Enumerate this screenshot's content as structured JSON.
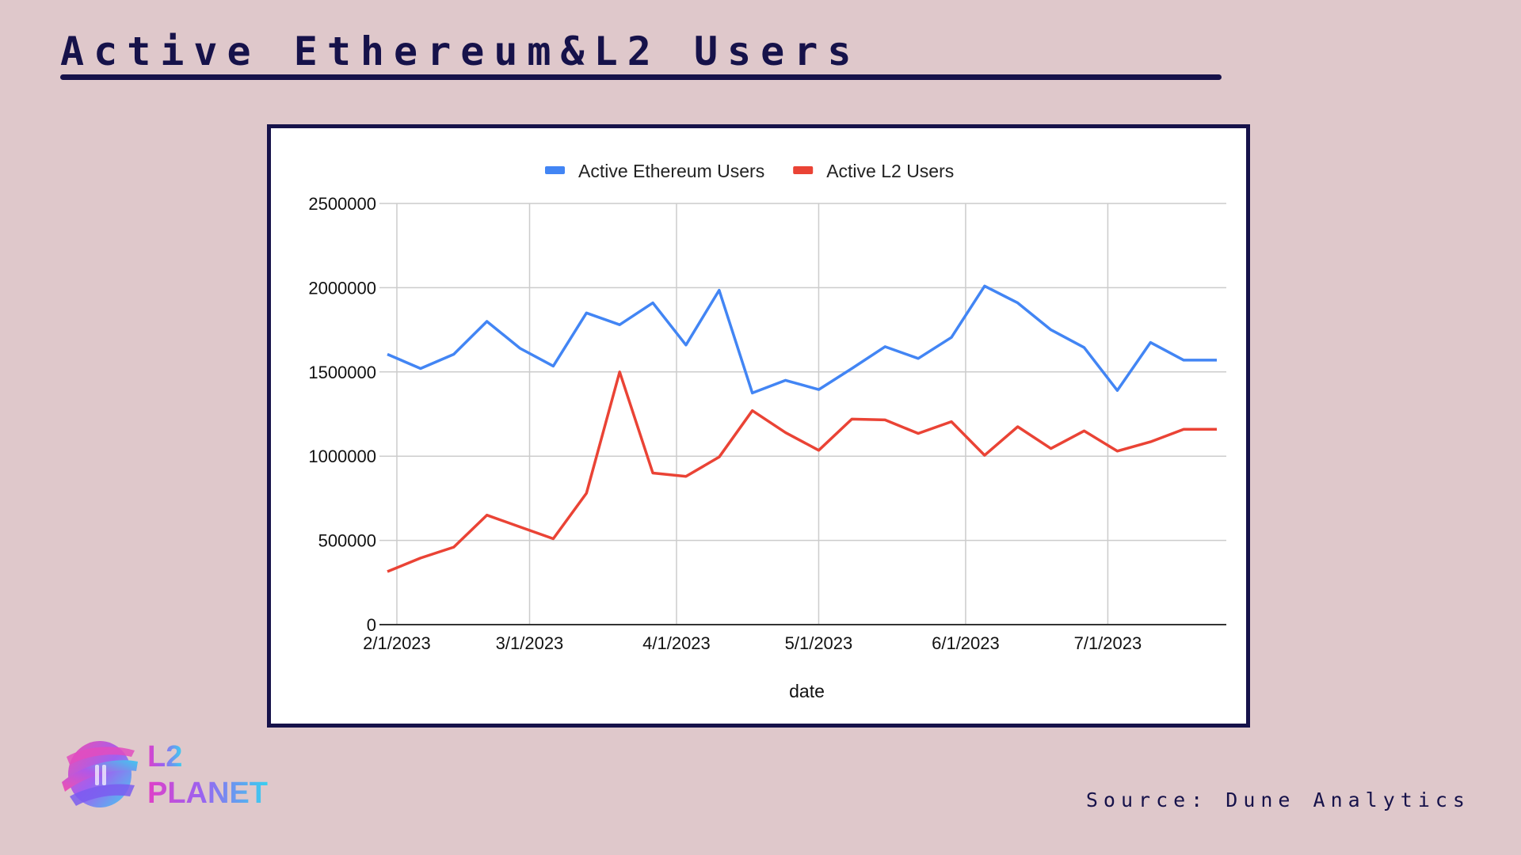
{
  "page": {
    "title": "Active Ethereum&L2 Users",
    "source": "Source: Dune Analytics",
    "logo_line1": "L2",
    "logo_line2": "PLANET"
  },
  "chart_data": {
    "type": "line",
    "xlabel": "date",
    "ylabel": "",
    "ylim": [
      0,
      2500000
    ],
    "yticks": [
      0,
      500000,
      1000000,
      1500000,
      2000000,
      2500000
    ],
    "ytick_labels": [
      "0",
      "500000",
      "1000000",
      "1500000",
      "2000000",
      "2500000"
    ],
    "xticks": [
      "2/1/2023",
      "3/1/2023",
      "4/1/2023",
      "5/1/2023",
      "6/1/2023",
      "7/1/2023"
    ],
    "xlim": [
      "2023-01-30",
      "2023-07-26"
    ],
    "grid": true,
    "legend_position": "top",
    "x": [
      "2023-01-30",
      "2023-02-06",
      "2023-02-13",
      "2023-02-20",
      "2023-02-27",
      "2023-03-06",
      "2023-03-13",
      "2023-03-20",
      "2023-03-27",
      "2023-04-03",
      "2023-04-10",
      "2023-04-17",
      "2023-04-24",
      "2023-05-01",
      "2023-05-08",
      "2023-05-15",
      "2023-05-22",
      "2023-05-29",
      "2023-06-05",
      "2023-06-12",
      "2023-06-19",
      "2023-06-26",
      "2023-07-03",
      "2023-07-10",
      "2023-07-17",
      "2023-07-24"
    ],
    "series": [
      {
        "name": "Active Ethereum Users",
        "color": "#4285f4",
        "values": [
          1605000,
          1520000,
          1605000,
          1800000,
          1640000,
          1535000,
          1850000,
          1780000,
          1910000,
          1660000,
          1985000,
          1375000,
          1450000,
          1395000,
          1520000,
          1650000,
          1580000,
          1705000,
          2010000,
          1910000,
          1750000,
          1645000,
          1390000,
          1675000,
          1570000,
          1570000
        ]
      },
      {
        "name": "Active L2  Users",
        "color": "#ea4335",
        "values": [
          315000,
          395000,
          460000,
          650000,
          580000,
          510000,
          780000,
          1500000,
          900000,
          880000,
          995000,
          1270000,
          1140000,
          1035000,
          1220000,
          1215000,
          1135000,
          1205000,
          1005000,
          1175000,
          1045000,
          1150000,
          1030000,
          1085000,
          1160000,
          1160000
        ]
      }
    ]
  }
}
